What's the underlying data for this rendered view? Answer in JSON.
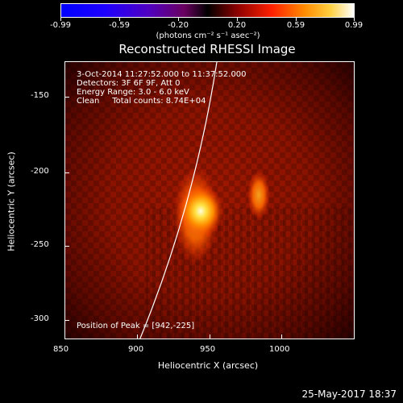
{
  "colorbar": {
    "tick_labels": [
      "-0.99",
      "-0.59",
      "-0.20",
      "0.20",
      "0.59",
      "0.99"
    ],
    "units": "(photons cm⁻² s⁻¹ asec⁻²)"
  },
  "plot": {
    "title": "Reconstructed RHESSI Image",
    "xlabel": "Heliocentric X (arcsec)",
    "ylabel": "Heliocentric Y (arcsec)",
    "x_ticks": [
      "850",
      "900",
      "950",
      "1000"
    ],
    "y_ticks": [
      "-150",
      "-200",
      "-250",
      "-300"
    ]
  },
  "info": {
    "time_range": "3-Oct-2014 11:27:52.000 to 11:37:52.000",
    "detectors": "Detectors: 3F 6F 9F, Att 0",
    "energy_range": "Energy Range: 3.0 - 6.0 keV",
    "clean_counts": "Clean     Total counts: 8.74E+04",
    "peak": "Position of Peak = [942,-225]"
  },
  "timestamp": "25-May-2017 18:37"
}
